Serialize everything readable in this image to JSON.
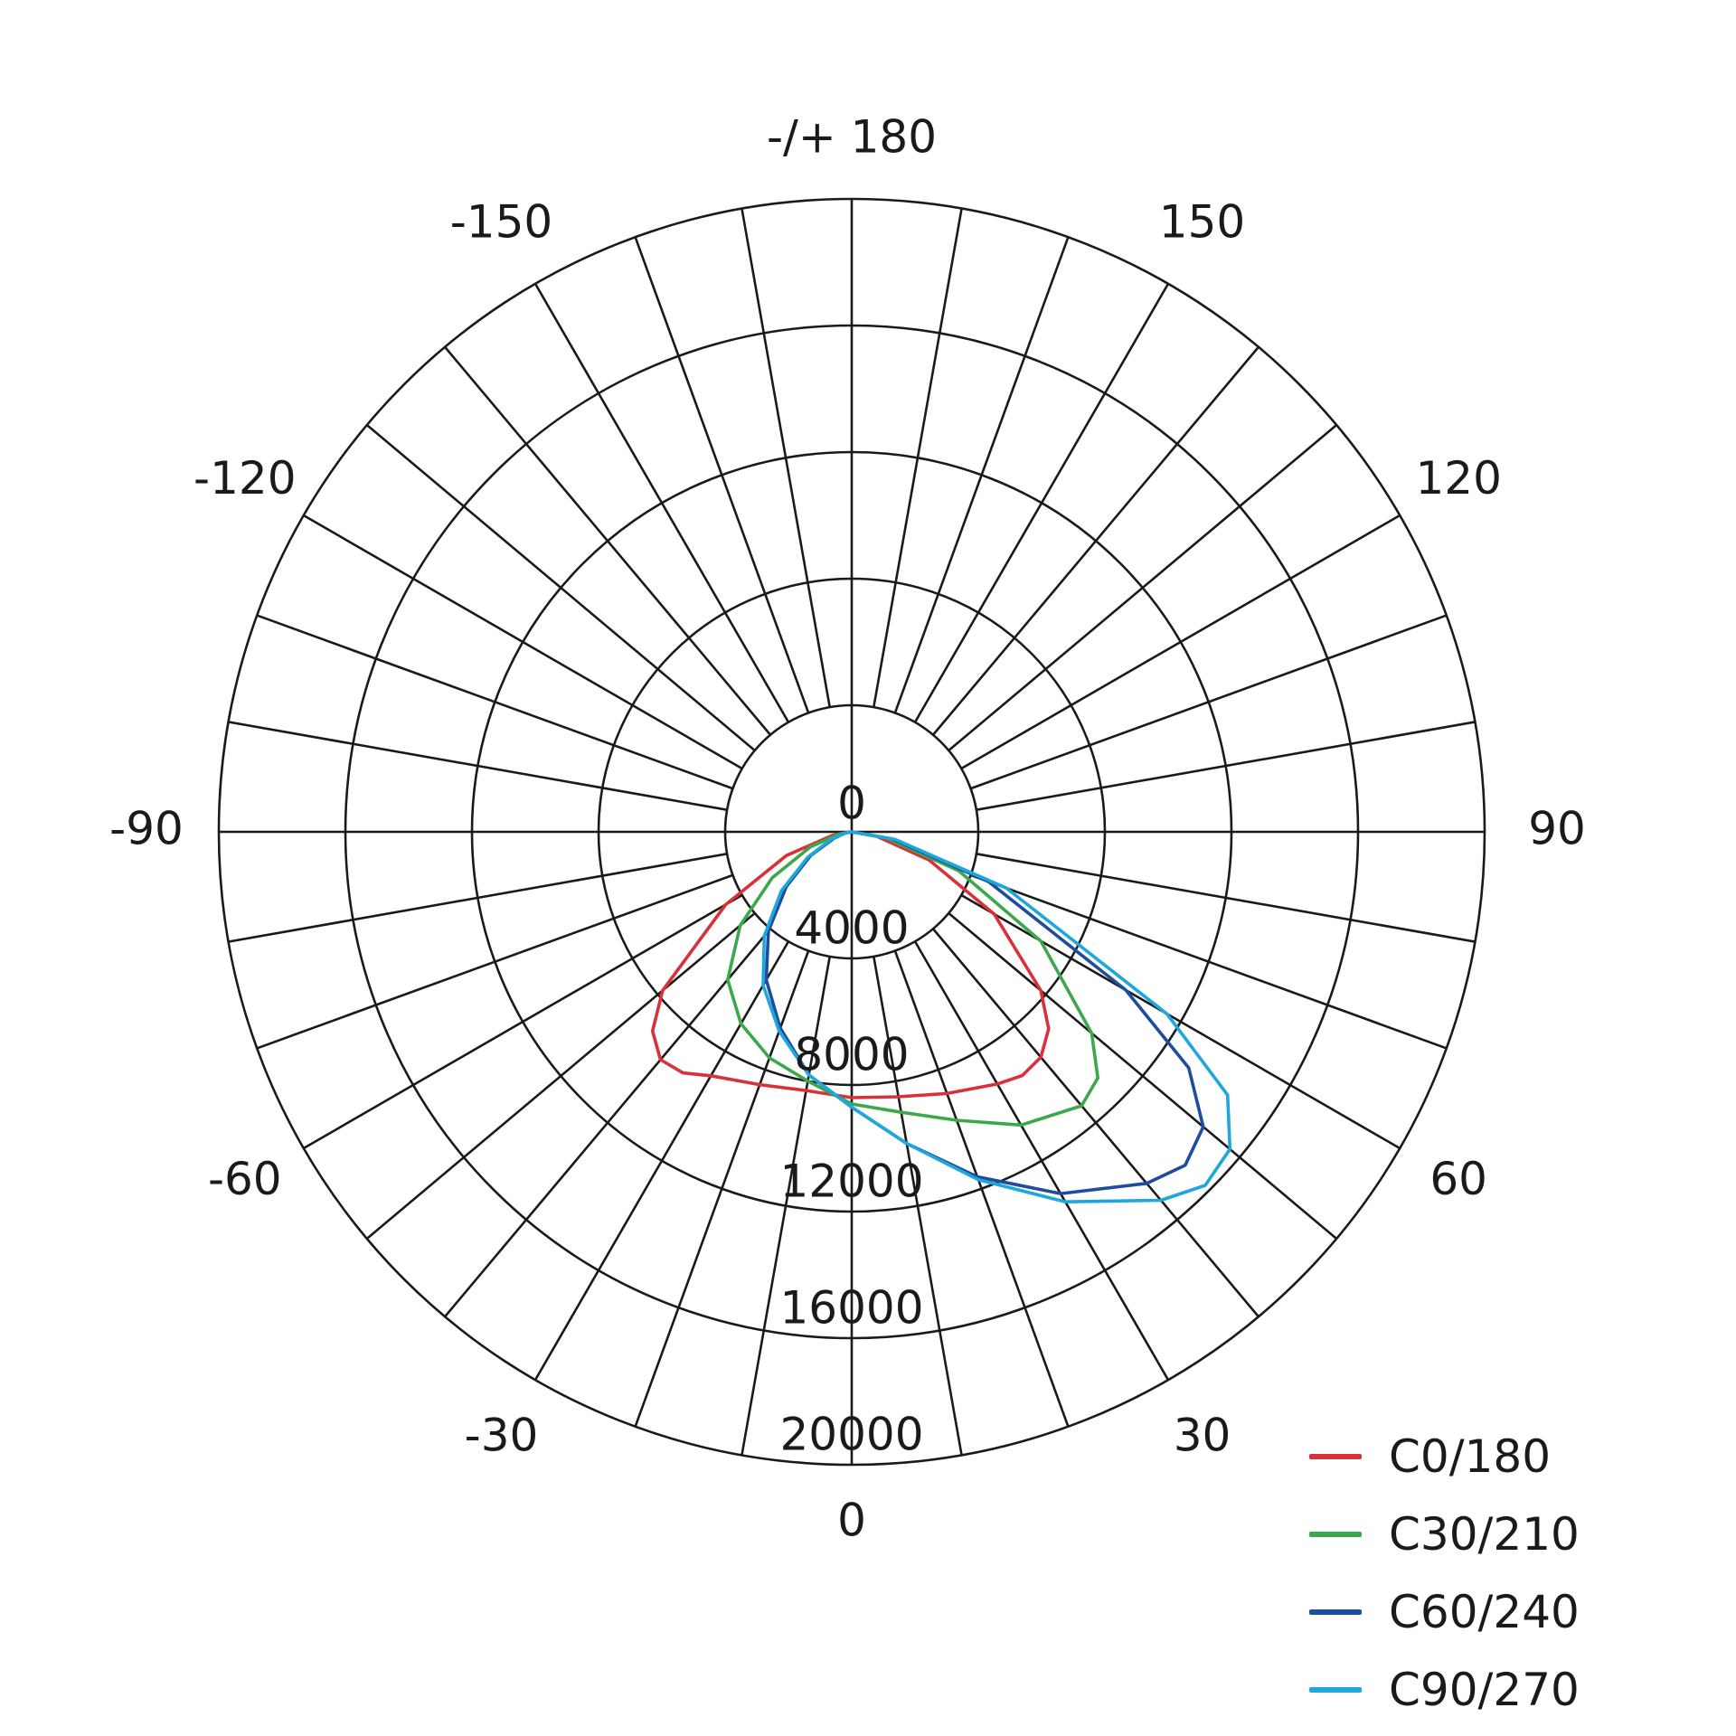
{
  "chart_data": {
    "type": "polar",
    "title": "",
    "angle_labels": [
      {
        "angle": 0,
        "text": "0"
      },
      {
        "angle": 30,
        "text": "30"
      },
      {
        "angle": 60,
        "text": "60"
      },
      {
        "angle": 90,
        "text": "90"
      },
      {
        "angle": 120,
        "text": "120"
      },
      {
        "angle": 150,
        "text": "150"
      },
      {
        "angle": 180,
        "text": "-/+ 180"
      },
      {
        "angle": -150,
        "text": "-150"
      },
      {
        "angle": -120,
        "text": "-120"
      },
      {
        "angle": -90,
        "text": "-90"
      },
      {
        "angle": -60,
        "text": "-60"
      },
      {
        "angle": -30,
        "text": "-30"
      }
    ],
    "radial_ticks": [
      {
        "value": 0,
        "text": "0"
      },
      {
        "value": 4000,
        "text": "4000"
      },
      {
        "value": 8000,
        "text": "8000"
      },
      {
        "value": 12000,
        "text": "12000"
      },
      {
        "value": 16000,
        "text": "16000"
      },
      {
        "value": 20000,
        "text": "20000"
      }
    ],
    "rlim": [
      0,
      20000
    ],
    "angle_step_deg": 10,
    "zero_direction": "bottom",
    "positive_direction": "clockwise",
    "legend_position": "bottom-right",
    "series": [
      {
        "name": "C0/180",
        "color": "#d9313a",
        "points": [
          [
            -90,
            0
          ],
          [
            -80,
            600
          ],
          [
            -70,
            2200
          ],
          [
            -60,
            4600
          ],
          [
            -50,
            7800
          ],
          [
            -45,
            8900
          ],
          [
            -40,
            9400
          ],
          [
            -35,
            9300
          ],
          [
            -30,
            8900
          ],
          [
            -20,
            8500
          ],
          [
            -10,
            8300
          ],
          [
            0,
            8400
          ],
          [
            10,
            8500
          ],
          [
            20,
            8800
          ],
          [
            30,
            9200
          ],
          [
            35,
            9400
          ],
          [
            40,
            9300
          ],
          [
            45,
            8800
          ],
          [
            50,
            7800
          ],
          [
            60,
            5200
          ],
          [
            70,
            2600
          ],
          [
            80,
            800
          ],
          [
            90,
            0
          ]
        ]
      },
      {
        "name": "C30/210",
        "color": "#3aa84b",
        "points": [
          [
            -90,
            0
          ],
          [
            -80,
            400
          ],
          [
            -70,
            1400
          ],
          [
            -60,
            2900
          ],
          [
            -50,
            4600
          ],
          [
            -40,
            6100
          ],
          [
            -30,
            7000
          ],
          [
            -20,
            7600
          ],
          [
            -10,
            8000
          ],
          [
            0,
            8600
          ],
          [
            10,
            9000
          ],
          [
            20,
            9700
          ],
          [
            30,
            10700
          ],
          [
            40,
            11300
          ],
          [
            45,
            11000
          ],
          [
            50,
            9900
          ],
          [
            60,
            6900
          ],
          [
            70,
            3600
          ],
          [
            80,
            1100
          ],
          [
            90,
            0
          ]
        ]
      },
      {
        "name": "C60/240",
        "color": "#1d4d9c",
        "points": [
          [
            -90,
            0
          ],
          [
            -80,
            200
          ],
          [
            -70,
            600
          ],
          [
            -60,
            1500
          ],
          [
            -50,
            2700
          ],
          [
            -40,
            4100
          ],
          [
            -30,
            5400
          ],
          [
            -20,
            6600
          ],
          [
            -10,
            7800
          ],
          [
            0,
            8700
          ],
          [
            10,
            10000
          ],
          [
            20,
            11600
          ],
          [
            30,
            13200
          ],
          [
            40,
            14500
          ],
          [
            45,
            14900
          ],
          [
            50,
            14500
          ],
          [
            55,
            13000
          ],
          [
            60,
            10000
          ],
          [
            70,
            4600
          ],
          [
            80,
            1300
          ],
          [
            90,
            0
          ]
        ]
      },
      {
        "name": "C90/270",
        "color": "#1ea7dc",
        "points": [
          [
            -90,
            0
          ],
          [
            -80,
            200
          ],
          [
            -70,
            700
          ],
          [
            -60,
            1600
          ],
          [
            -50,
            2900
          ],
          [
            -40,
            4300
          ],
          [
            -30,
            5600
          ],
          [
            -20,
            6700
          ],
          [
            -10,
            7800
          ],
          [
            0,
            8700
          ],
          [
            10,
            10000
          ],
          [
            20,
            11700
          ],
          [
            30,
            13500
          ],
          [
            40,
            15200
          ],
          [
            45,
            15800
          ],
          [
            50,
            15600
          ],
          [
            55,
            14500
          ],
          [
            60,
            11500
          ],
          [
            70,
            5200
          ],
          [
            80,
            1400
          ],
          [
            90,
            0
          ]
        ]
      }
    ]
  }
}
